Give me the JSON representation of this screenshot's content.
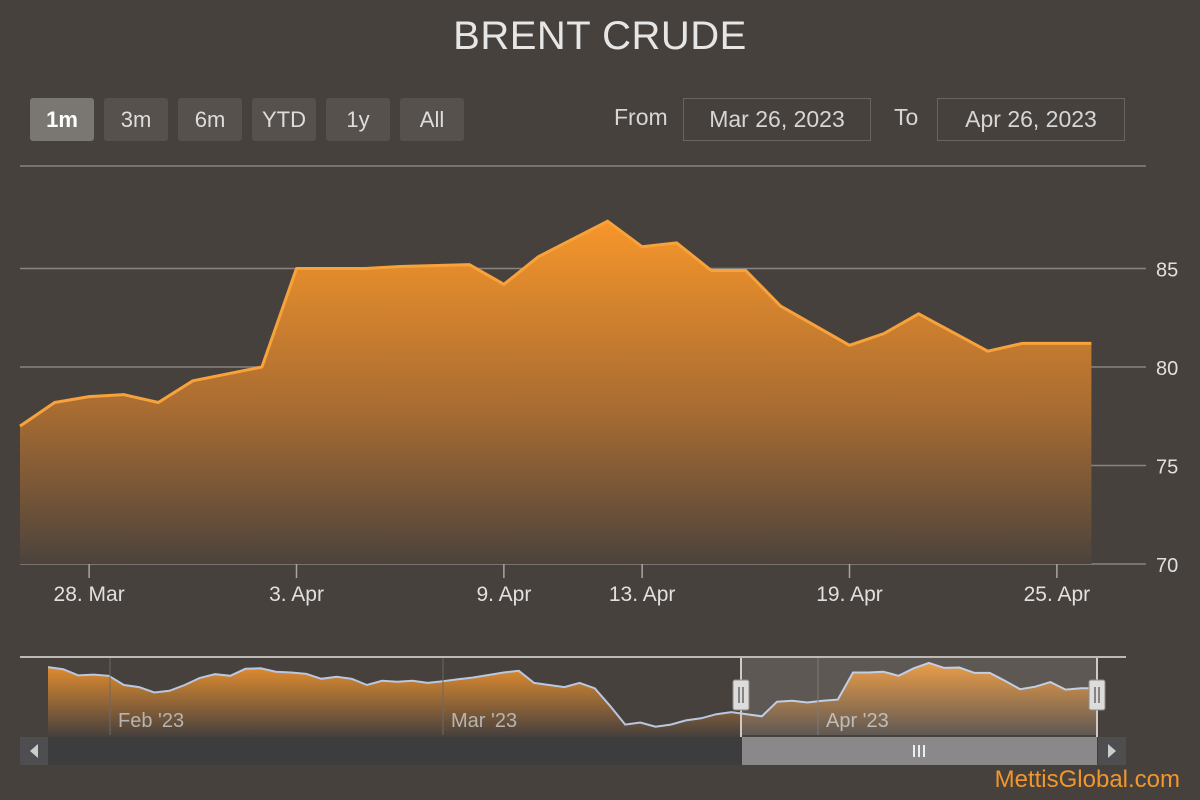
{
  "title": "BRENT CRUDE",
  "range_selector": {
    "buttons": [
      {
        "label": "1m",
        "active": true
      },
      {
        "label": "3m",
        "active": false
      },
      {
        "label": "6m",
        "active": false
      },
      {
        "label": "YTD",
        "active": false
      },
      {
        "label": "1y",
        "active": false
      },
      {
        "label": "All",
        "active": false
      }
    ],
    "from_label": "From",
    "from_value": "Mar 26, 2023",
    "to_label": "To",
    "to_value": "Apr 26, 2023"
  },
  "chart_data": {
    "type": "area",
    "title": "BRENT CRUDE",
    "x_label": "",
    "y_label": "",
    "ylim": [
      70,
      90
    ],
    "yticks": [
      70,
      75,
      80,
      85
    ],
    "xlim": [
      "2023-03-26",
      "2023-04-27"
    ],
    "xticks": [
      {
        "date": "2023-03-28",
        "label": "28. Mar"
      },
      {
        "date": "2023-04-03",
        "label": "3. Apr"
      },
      {
        "date": "2023-04-09",
        "label": "9. Apr"
      },
      {
        "date": "2023-04-13",
        "label": "13. Apr"
      },
      {
        "date": "2023-04-19",
        "label": "19. Apr"
      },
      {
        "date": "2023-04-25",
        "label": "25. Apr"
      }
    ],
    "series": [
      {
        "x": [
          "2023-03-26",
          "2023-03-27",
          "2023-03-28",
          "2023-03-29",
          "2023-03-30",
          "2023-03-31",
          "2023-04-02",
          "2023-04-03",
          "2023-04-05",
          "2023-04-06",
          "2023-04-08",
          "2023-04-09",
          "2023-04-10",
          "2023-04-12",
          "2023-04-13",
          "2023-04-14",
          "2023-04-15",
          "2023-04-16",
          "2023-04-17",
          "2023-04-19",
          "2023-04-20",
          "2023-04-21",
          "2023-04-23",
          "2023-04-24",
          "2023-04-25",
          "2023-04-26"
        ],
        "values": [
          77.0,
          78.2,
          78.5,
          78.6,
          78.2,
          79.3,
          80.0,
          85.0,
          85.0,
          85.1,
          85.2,
          84.2,
          85.6,
          87.4,
          86.1,
          86.3,
          84.9,
          84.9,
          83.1,
          81.1,
          81.7,
          82.7,
          80.8,
          81.2,
          81.2,
          81.2
        ]
      }
    ],
    "navigator": {
      "xlabels": [
        "Feb '23",
        "Mar '23",
        "Apr '23"
      ],
      "values": [
        86.3,
        85.8,
        84.3,
        84.5,
        84.2,
        82.0,
        81.5,
        80.2,
        80.6,
        82.0,
        83.7,
        84.6,
        84.2,
        85.9,
        86.0,
        85.2,
        85.0,
        84.7,
        83.5,
        84.0,
        83.5,
        82.0,
        83.0,
        82.8,
        83.0,
        82.5,
        82.9,
        83.4,
        83.8,
        84.4,
        85.0,
        85.4,
        82.5,
        82.0,
        81.5,
        82.5,
        81.2,
        77.0,
        72.5,
        73.0,
        72.0,
        72.5,
        73.5,
        74.0,
        75.0,
        75.5,
        75.0,
        74.5,
        78.0,
        78.2,
        77.8,
        78.2,
        78.5,
        85.0,
        85.0,
        85.2,
        84.2,
        86.0,
        87.3,
        86.1,
        86.2,
        84.9,
        84.9,
        83.0,
        81.0,
        81.6,
        82.7,
        80.9,
        81.2,
        81.2
      ]
    }
  },
  "scrollbar": {
    "left_arrow": "◀",
    "right_arrow": "▶",
    "grip": "|||"
  },
  "credit": "MettisGlobal.com"
}
